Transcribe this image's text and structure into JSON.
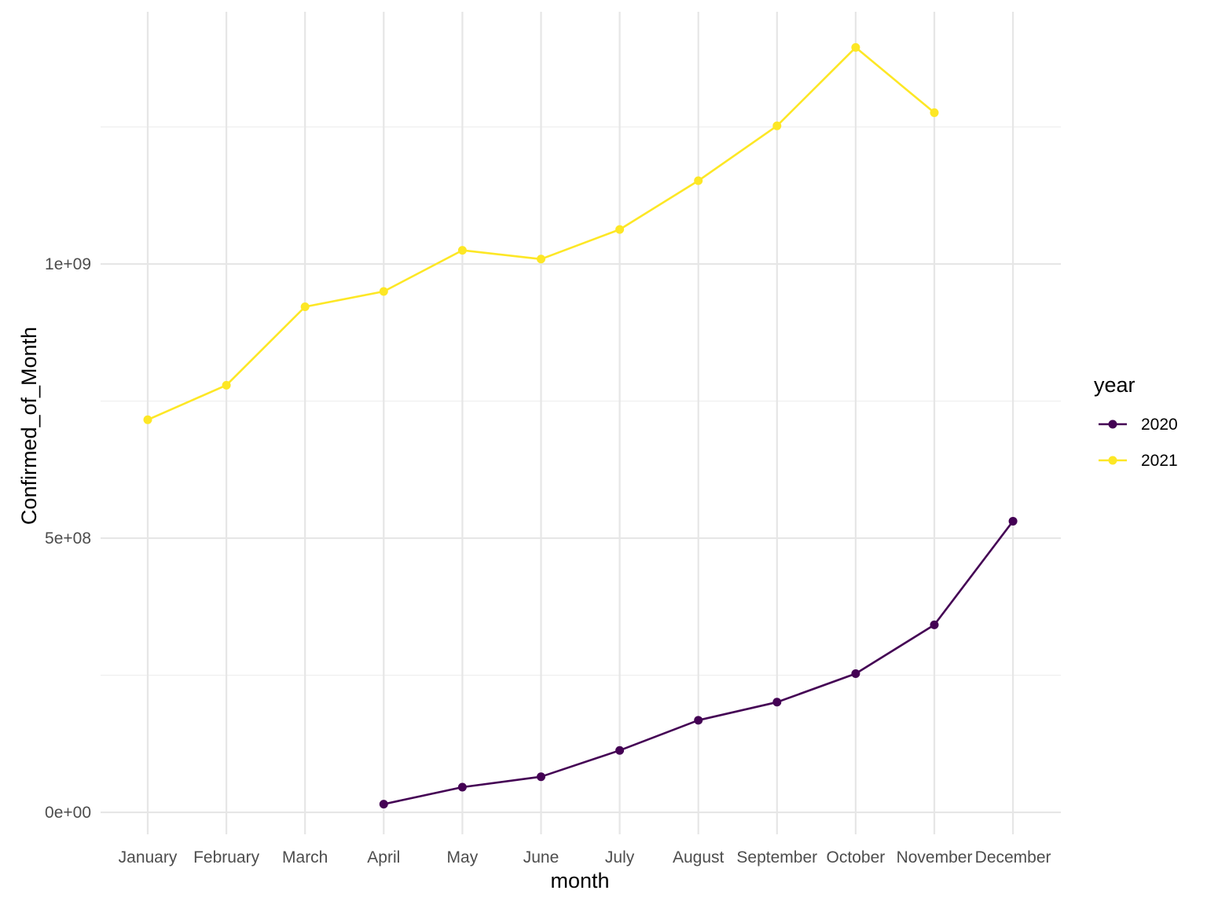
{
  "chart_data": {
    "type": "line",
    "xlabel": "month",
    "ylabel": "Confirmed_of_Month",
    "categories": [
      "January",
      "February",
      "March",
      "April",
      "May",
      "June",
      "July",
      "August",
      "September",
      "October",
      "November",
      "December"
    ],
    "ylim": [
      -40000000,
      1460000000
    ],
    "y_ticks": [
      {
        "value": 0,
        "label": "0e+00"
      },
      {
        "value": 500000000,
        "label": "5e+08"
      },
      {
        "value": 1000000000,
        "label": "1e+09"
      }
    ],
    "y_minor_ticks": [
      250000000,
      750000000,
      1250000000
    ],
    "grid": true,
    "legend": {
      "title": "year",
      "position": "right"
    },
    "series": [
      {
        "name": "2020",
        "color": "#440154",
        "values": [
          null,
          null,
          null,
          15000000,
          46000000,
          65000000,
          113000000,
          168000000,
          201000000,
          253000000,
          342000000,
          531000000
        ]
      },
      {
        "name": "2021",
        "color": "#FDE725",
        "values": [
          716000000,
          779000000,
          922000000,
          950000000,
          1025000000,
          1009000000,
          1063000000,
          1152000000,
          1252000000,
          1395000000,
          1276000000,
          null
        ]
      }
    ]
  }
}
